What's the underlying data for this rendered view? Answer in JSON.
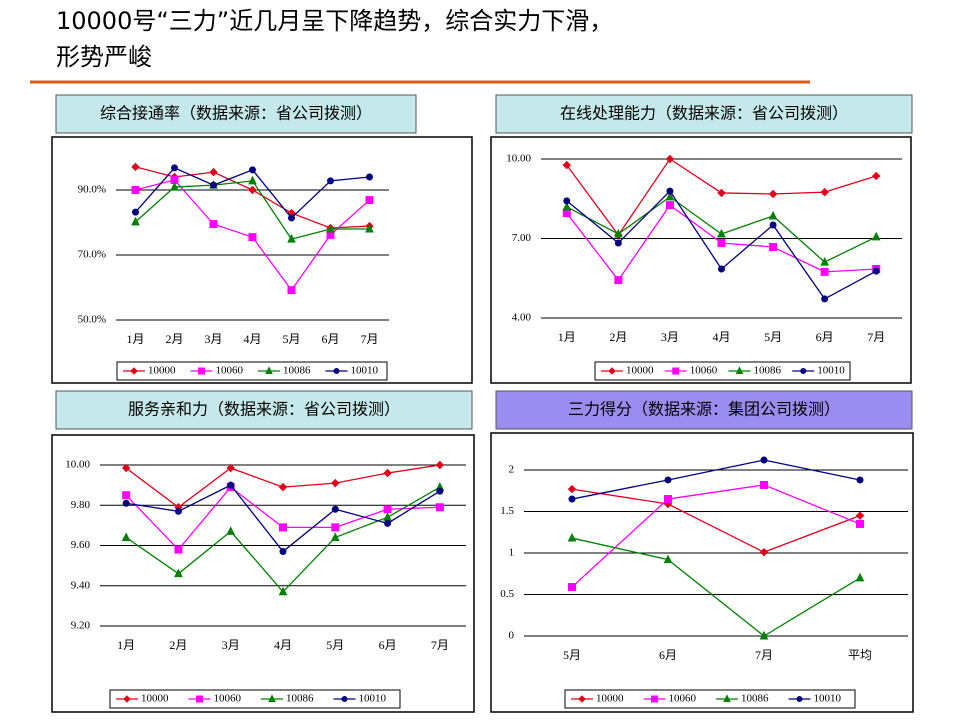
{
  "title_lines": [
    "10000号“三力”近几月呈下降趋势，综合实力下滑，",
    "形势严峻"
  ],
  "chart_data": [
    {
      "type": "line",
      "title": "综合接通率（数据来源：省公司拨测）",
      "categories": [
        "1月",
        "2月",
        "3月",
        "4月",
        "5月",
        "6月",
        "7月"
      ],
      "ylim": [
        50,
        100
      ],
      "yticks": [
        {
          "value": 50,
          "label": "50.0%"
        },
        {
          "value": 70,
          "label": "70.0%"
        },
        {
          "value": 90,
          "label": "90.0%"
        }
      ],
      "grid": true,
      "legend": "bottom",
      "series": [
        {
          "name": "10000",
          "color": "#e0001a",
          "marker": "diamond",
          "values": [
            97.1,
            94.0,
            95.5,
            90.0,
            82.9,
            78.3,
            78.9
          ]
        },
        {
          "name": "10060",
          "color": "#ff00ff",
          "marker": "square",
          "values": [
            90.0,
            93.1,
            79.5,
            75.5,
            59.2,
            76.2,
            86.9
          ]
        },
        {
          "name": "10086",
          "color": "#008000",
          "marker": "triangle",
          "values": [
            80.2,
            90.9,
            91.5,
            92.8,
            74.9,
            78.0,
            78.0
          ]
        },
        {
          "name": "10010",
          "color": "#000080",
          "marker": "circle",
          "values": [
            83.2,
            96.8,
            91.5,
            96.2,
            81.4,
            92.8,
            94.0
          ]
        }
      ]
    },
    {
      "type": "line",
      "title": "在线处理能力（数据来源：省公司拨测）",
      "categories": [
        "1月",
        "2月",
        "3月",
        "4月",
        "5月",
        "6月",
        "7月"
      ],
      "ylim": [
        4,
        10
      ],
      "yticks": [
        {
          "value": 4,
          "label": "4.00"
        },
        {
          "value": 7,
          "label": "7.00"
        },
        {
          "value": 10,
          "label": "10.00"
        }
      ],
      "grid": true,
      "legend": "bottom",
      "series": [
        {
          "name": "10000",
          "color": "#e0001a",
          "marker": "diamond",
          "values": [
            9.77,
            7.13,
            10.0,
            8.72,
            8.68,
            8.75,
            9.36
          ]
        },
        {
          "name": "10060",
          "color": "#ff00ff",
          "marker": "square",
          "values": [
            7.96,
            5.43,
            8.26,
            6.83,
            6.68,
            5.74,
            5.85
          ]
        },
        {
          "name": "10086",
          "color": "#008000",
          "marker": "triangle",
          "values": [
            8.19,
            7.17,
            8.57,
            7.17,
            7.85,
            6.11,
            7.06
          ]
        },
        {
          "name": "10010",
          "color": "#000080",
          "marker": "circle",
          "values": [
            8.42,
            6.83,
            8.79,
            5.85,
            7.51,
            4.72,
            5.77
          ]
        }
      ]
    },
    {
      "type": "line",
      "title": "服务亲和力（数据来源：省公司拨测）",
      "categories": [
        "1月",
        "2月",
        "3月",
        "4月",
        "5月",
        "6月",
        "7月"
      ],
      "ylim": [
        9.2,
        10
      ],
      "yticks": [
        {
          "value": 9.2,
          "label": "9.20"
        },
        {
          "value": 9.4,
          "label": "9.40"
        },
        {
          "value": 9.6,
          "label": "9.60"
        },
        {
          "value": 9.8,
          "label": "9.80"
        },
        {
          "value": 10,
          "label": "10.00"
        }
      ],
      "grid": true,
      "legend": "bottom",
      "series": [
        {
          "name": "10000",
          "color": "#e0001a",
          "marker": "diamond",
          "values": [
            9.985,
            9.79,
            9.985,
            9.89,
            9.91,
            9.96,
            10.0
          ]
        },
        {
          "name": "10060",
          "color": "#ff00ff",
          "marker": "square",
          "values": [
            9.85,
            9.58,
            9.89,
            9.69,
            9.69,
            9.78,
            9.79
          ]
        },
        {
          "name": "10086",
          "color": "#008000",
          "marker": "triangle",
          "values": [
            9.64,
            9.46,
            9.67,
            9.37,
            9.64,
            9.74,
            9.89
          ]
        },
        {
          "name": "10010",
          "color": "#000080",
          "marker": "circle",
          "values": [
            9.81,
            9.77,
            9.9,
            9.57,
            9.78,
            9.71,
            9.87
          ]
        }
      ]
    },
    {
      "type": "line",
      "title": "三力得分（数据来源：集团公司拨测）",
      "categories": [
        "5月",
        "6月",
        "7月",
        "平均"
      ],
      "ylim": [
        0,
        2.2
      ],
      "yticks": [
        0,
        0.5,
        1,
        1.5,
        2
      ],
      "grid": true,
      "legend": "bottom",
      "series": [
        {
          "name": "10000",
          "color": "#e0001a",
          "marker": "diamond",
          "values": [
            1.77,
            1.59,
            1.01,
            1.45
          ]
        },
        {
          "name": "10060",
          "color": "#ff00ff",
          "marker": "square",
          "values": [
            0.59,
            1.65,
            1.82,
            1.35
          ]
        },
        {
          "name": "10086",
          "color": "#008000",
          "marker": "triangle",
          "values": [
            1.18,
            0.92,
            0.0,
            0.7
          ]
        },
        {
          "name": "10010",
          "color": "#000080",
          "marker": "circle",
          "values": [
            1.65,
            1.88,
            2.12,
            1.88
          ]
        }
      ]
    }
  ]
}
